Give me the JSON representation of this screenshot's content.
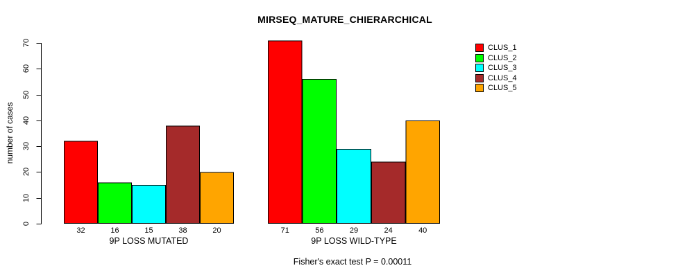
{
  "chart_data": {
    "type": "bar",
    "title": "MIRSEQ_MATURE_CHIERARCHICAL",
    "ylabel": "number of cases",
    "xlabel": "",
    "ylim": [
      0,
      70
    ],
    "yticks": [
      0,
      10,
      20,
      30,
      40,
      50,
      60,
      70
    ],
    "grid": false,
    "legend_position": "top-right",
    "categories": [
      "9P LOSS MUTATED",
      "9P LOSS WILD-TYPE"
    ],
    "series": [
      {
        "name": "CLUS_1",
        "color": "#FF0000",
        "values": [
          32,
          71
        ]
      },
      {
        "name": "CLUS_2",
        "color": "#00FF00",
        "values": [
          16,
          56
        ]
      },
      {
        "name": "CLUS_3",
        "color": "#00FFFF",
        "values": [
          15,
          29
        ]
      },
      {
        "name": "CLUS_4",
        "color": "#A52A2A",
        "values": [
          38,
          24
        ]
      },
      {
        "name": "CLUS_5",
        "color": "#FFA500",
        "values": [
          20,
          40
        ]
      }
    ],
    "bar_labels": [
      [
        "32",
        "16",
        "15",
        "38",
        "20"
      ],
      [
        "71",
        "56",
        "29",
        "24",
        "40"
      ]
    ],
    "annotation": "Fisher's exact test P = 0.00011",
    "bar_border_color": "#000000",
    "axis_color": "#000000"
  }
}
